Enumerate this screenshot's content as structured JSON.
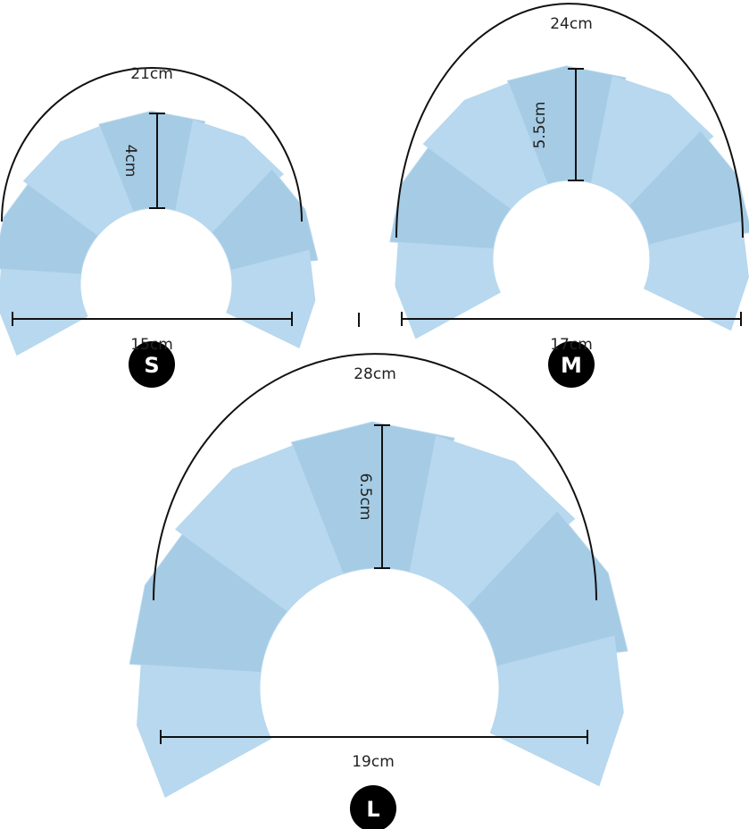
{
  "colors": {
    "glove": "#b7d8ee",
    "glove_shade": "#a6cbe4",
    "line": "#111111",
    "badge": "#000000"
  },
  "sizes": [
    {
      "size": "S",
      "circumference": "21cm",
      "height": "4cm",
      "width": "15cm"
    },
    {
      "size": "M",
      "circumference": "24cm",
      "height": "5.5cm",
      "width": "17cm"
    },
    {
      "size": "L",
      "circumference": "28cm",
      "height": "6.5cm",
      "width": "19cm"
    }
  ]
}
